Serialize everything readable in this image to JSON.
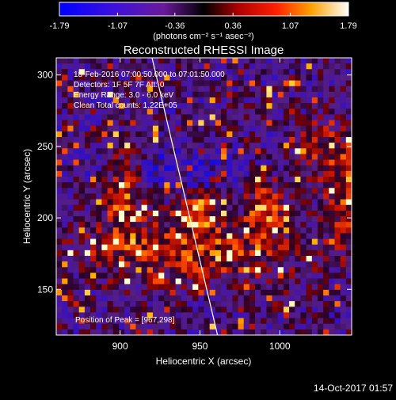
{
  "colorbar": {
    "ticks": [
      "-1.79",
      "-1.07",
      "-0.36",
      "0.36",
      "1.07",
      "1.79"
    ],
    "unit_label": "(photons cm⁻² s⁻¹ asec⁻²)",
    "min": -1.79,
    "max": 1.79
  },
  "chart_data": {
    "type": "heatmap",
    "title": "Reconstructed RHESSI Image",
    "xlabel": "Heliocentric X (arcsec)",
    "ylabel": "Heliocentric Y (arcsec)",
    "xlim": [
      860,
      1045
    ],
    "ylim": [
      118,
      312
    ],
    "xticks": [
      900,
      950,
      1000
    ],
    "yticks": [
      150,
      200,
      250,
      300
    ],
    "annotations": [
      "18-Feb-2016 07:00:50.000 to 07:01:50.000",
      "Detectors: 1F 5F 7F Att: 0",
      "Energy Range: 3.0 - 6.0 keV",
      "Clean      Total counts: 1.22E+05"
    ],
    "peak_label": "Position of Peak = [967,298]",
    "peak": [
      967,
      298
    ],
    "limb_line": [
      [
        920,
        312
      ],
      [
        961,
        118
      ]
    ]
  },
  "footer": {
    "date": "14-Oct-2017 01:57"
  }
}
